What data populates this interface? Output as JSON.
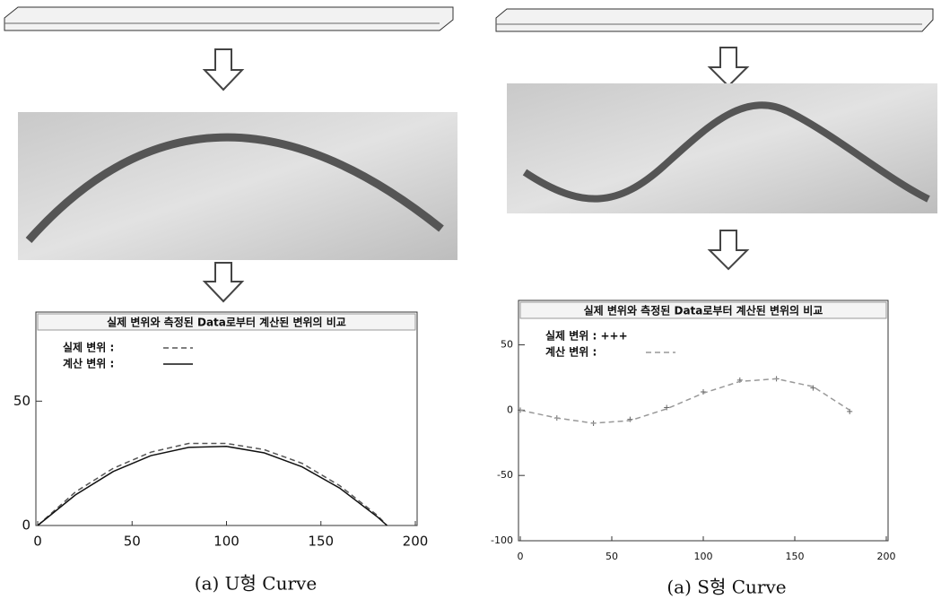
{
  "chart_data": [
    {
      "type": "line",
      "title": "실제 변위와 측정된 Data로부터 계산된 변위의 비교",
      "x": [
        0,
        20,
        40,
        60,
        80,
        100,
        120,
        140,
        160,
        180,
        185
      ],
      "series": [
        {
          "name": "실제 변위 :",
          "color": "#555555",
          "style": "dash",
          "values": [
            0,
            13.5,
            23,
            29.5,
            33,
            33,
            30.5,
            25,
            16,
            4,
            0
          ]
        },
        {
          "name": "계산 변위 :",
          "color": "#111111",
          "style": "solid",
          "values": [
            0,
            12.3,
            21.7,
            28.1,
            31.4,
            31.8,
            29.2,
            23.6,
            15,
            3.4,
            0
          ]
        }
      ],
      "xlim": [
        0,
        200
      ],
      "xticks": [
        0,
        50,
        100,
        150,
        200
      ],
      "ylim": [
        0,
        75
      ],
      "yticks": [
        0,
        50
      ]
    },
    {
      "type": "line",
      "title": "실제 변위와 측정된 Data로부터 계산된 변위의 비교",
      "x": [
        0,
        20,
        40,
        60,
        80,
        100,
        120,
        140,
        160,
        180
      ],
      "series": [
        {
          "name": "실제 변위 : +++",
          "color": "#666666",
          "style": "plus",
          "values": [
            0,
            -6,
            -10,
            -7,
            2,
            14,
            23,
            24,
            17,
            -1
          ]
        },
        {
          "name": "계산 변위 :",
          "color": "#999999",
          "style": "dash",
          "values": [
            0,
            -6,
            -10,
            -8,
            1,
            13,
            22,
            24,
            18,
            0
          ]
        }
      ],
      "xlim": [
        0,
        200
      ],
      "xticks": [
        0,
        50,
        100,
        150,
        200
      ],
      "ylim": [
        -100,
        60
      ],
      "yticks": [
        -100,
        -50,
        0,
        50
      ]
    }
  ],
  "captions": [
    "(a) U형 Curve",
    "(a) S형 Curve"
  ]
}
